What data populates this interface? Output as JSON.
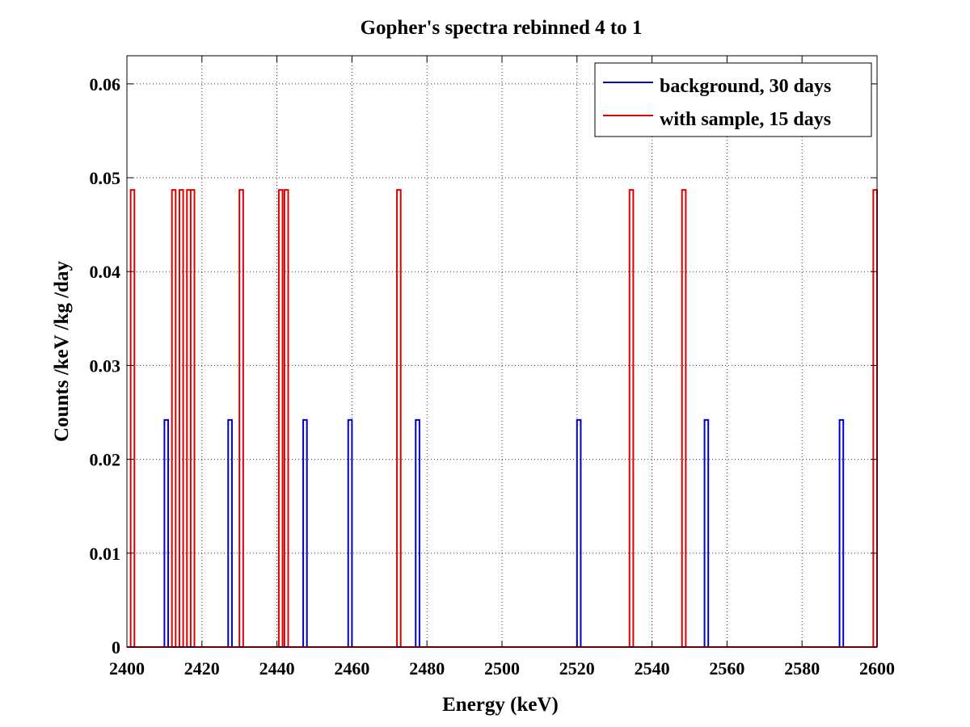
{
  "chart_data": {
    "type": "line",
    "title": "Gopher's spectra rebinned 4 to 1",
    "xlabel": "Energy (keV)",
    "ylabel": "Counts /keV /kg /day",
    "xlim": [
      2400,
      2600
    ],
    "ylim": [
      0,
      0.063
    ],
    "xticks": [
      2400,
      2420,
      2440,
      2460,
      2480,
      2500,
      2520,
      2540,
      2560,
      2580,
      2600
    ],
    "xtick_labels": [
      "2400",
      "2420",
      "2440",
      "2460",
      "2480",
      "2500",
      "2520",
      "2540",
      "2560",
      "2580",
      "2600"
    ],
    "yticks": [
      0,
      0.01,
      0.02,
      0.03,
      0.04,
      0.05,
      0.06
    ],
    "ytick_labels": [
      "0",
      "0.01",
      "0.02",
      "0.03",
      "0.04",
      "0.05",
      "0.06"
    ],
    "grid": true,
    "legend_position": "top-right",
    "bin_width": 1,
    "series": [
      {
        "name": "background, 30 days",
        "color": "#0000cc",
        "peak_value": 0.0242,
        "bins_start": [
          2410,
          2427,
          2447,
          2459,
          2477,
          2520,
          2554,
          2590
        ]
      },
      {
        "name": "with sample, 15 days",
        "color": "#dd0000",
        "peak_value": 0.0487,
        "bins_start": [
          2401,
          2412,
          2414,
          2416,
          2417,
          2430,
          2440.5,
          2442,
          2472,
          2534,
          2548,
          2599
        ]
      }
    ]
  }
}
